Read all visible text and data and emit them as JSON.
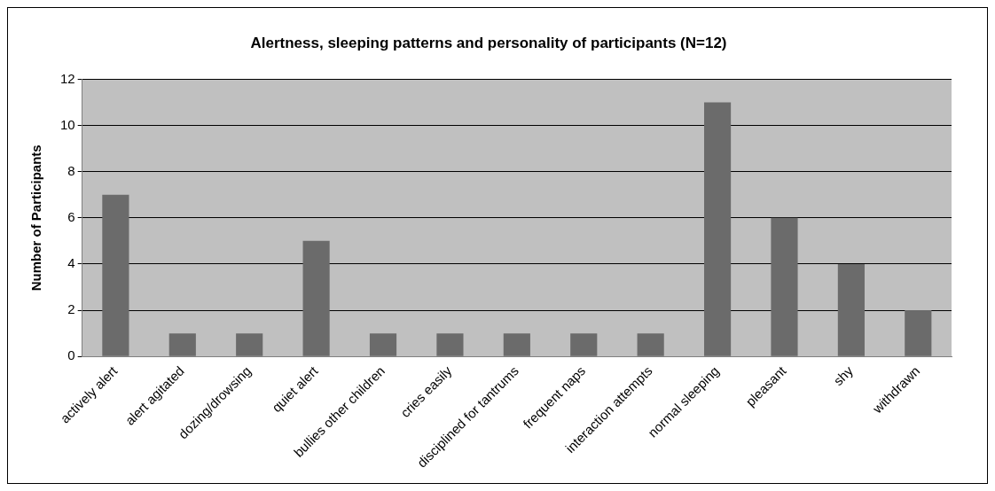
{
  "chart_data": {
    "type": "bar",
    "title": "Alertness, sleeping patterns and personality of participants (N=12)",
    "ylabel": "Number of Participants",
    "categories": [
      "actively alert",
      "alert agitated",
      "dozing/drowsing",
      "quiet alert",
      "bullies other children",
      "cries easily",
      "disciplined for tantrums",
      "frequent naps",
      "interaction attempts",
      "normal sleeping",
      "pleasant",
      "shy",
      "withdrawn"
    ],
    "values": [
      7,
      1,
      1,
      5,
      1,
      1,
      1,
      1,
      1,
      11,
      6,
      4,
      2
    ],
    "color": "#6b6b6b",
    "ylim": [
      0,
      12
    ],
    "yticks": [
      0,
      2,
      4,
      6,
      8,
      10,
      12
    ],
    "grid": "y",
    "legend": false
  }
}
